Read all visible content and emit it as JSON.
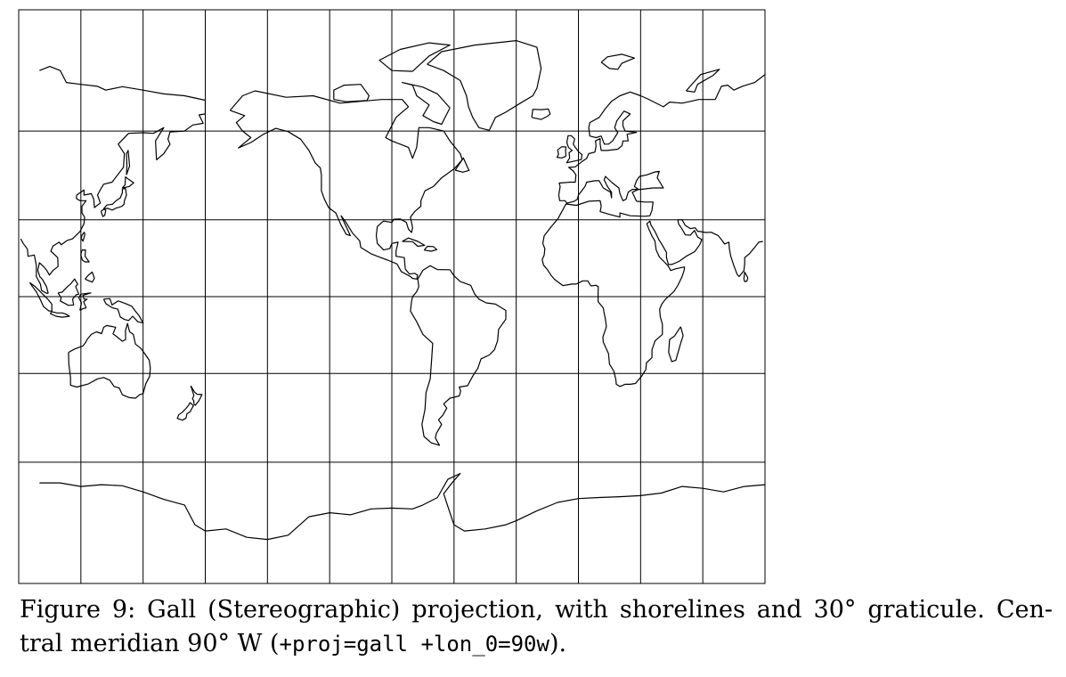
{
  "figure": {
    "projection": "Gall (Stereographic)",
    "central_meridian_lon": -90,
    "graticule_step_deg": 30,
    "frame_lat_range": [
      -90,
      90
    ],
    "colors": {
      "graticule": "#000000",
      "shoreline": "#000000",
      "background": "#ffffff"
    }
  },
  "caption": {
    "prefix": "Figure 9: Gall (Stereographic) projection, with shorelines and 30° graticule. Cen-",
    "line2_prefix": "tral meridian 90° W (",
    "code": "+proj=gall +lon_0=90w",
    "suffix": ")."
  }
}
